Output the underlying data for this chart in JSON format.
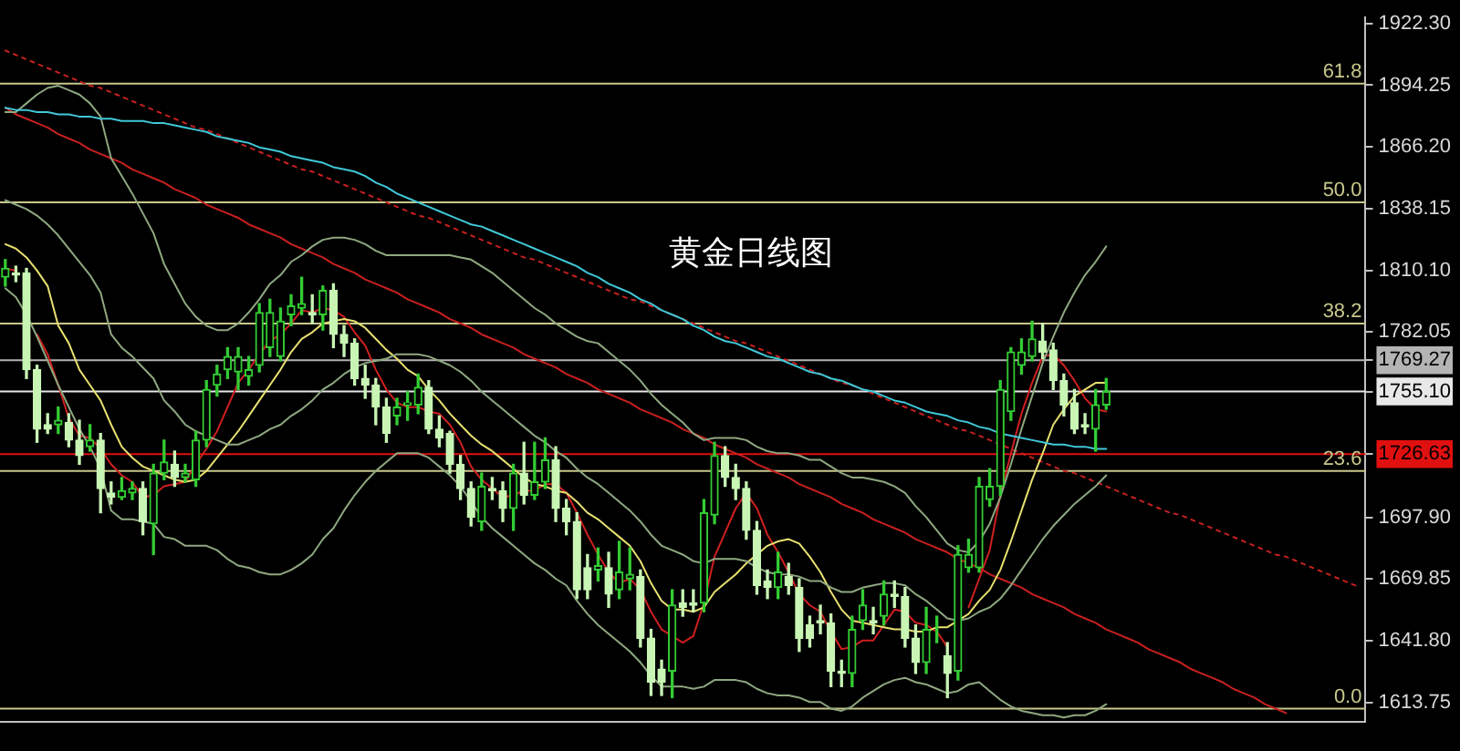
{
  "chart_data": {
    "type": "candlestick",
    "title": "黄金日线图",
    "colors": [
      "#33cc33",
      "#c8f5b4",
      "#c8f5b4",
      "#c8f5b4",
      "#c8f5b4",
      "#33cc33",
      "#c8f5b4",
      "#c8f5b4",
      "#33cc33",
      "#c8f5b4",
      "#c8f5b4",
      "#33cc33",
      "#33cc33",
      "#c8f5b4",
      "#33cc33",
      "#33cc33",
      "#c8f5b4",
      "#33cc33",
      "#33cc33",
      "#33cc33",
      "#33cc33",
      "#33cc33",
      "#33cc33",
      "#33cc33",
      "#33cc33",
      "#33cc33",
      "#33cc33",
      "#33cc33",
      "#33cc33",
      "#c8f5b4",
      "#33cc33",
      "#c8f5b4",
      "#c8f5b4",
      "#c8f5b4",
      "#c8f5b4",
      "#c8f5b4",
      "#c8f5b4",
      "#33cc33",
      "#33cc33",
      "#33cc33",
      "#c8f5b4",
      "#c8f5b4",
      "#c8f5b4",
      "#c8f5b4",
      "#c8f5b4",
      "#33cc33",
      "#c8f5b4",
      "#c8f5b4",
      "#33cc33",
      "#c8f5b4",
      "#33cc33",
      "#33cc33",
      "#c8f5b4",
      "#c8f5b4",
      "#c8f5b4",
      "#c8f5b4",
      "#33cc33",
      "#c8f5b4",
      "#33cc33",
      "#33cc33",
      "#c8f5b4",
      "#c8f5b4",
      "#c8f5b4",
      "#33cc33",
      "#c8f5b4",
      "#c8f5b4",
      "#33cc33",
      "#33cc33",
      "#c8f5b4",
      "#c8f5b4",
      "#c8f5b4",
      "#c8f5b4",
      "#c8f5b4",
      "#33cc33",
      "#c8f5b4",
      "#c8f5b4",
      "#c8f5b4",
      "#c8f5b4",
      "#c8f5b4",
      "#c8f5b4",
      "#33cc33",
      "#33cc33",
      "#c8f5b4",
      "#33cc33",
      "#c8f5b4",
      "#c8f5b4",
      "#c8f5b4",
      "#33cc33",
      "#33cc33",
      "#c8f5b4",
      "#33cc33",
      "#33cc33",
      "#33cc33",
      "#33cc33",
      "#33cc33",
      "#33cc33",
      "#33cc33",
      "#33cc33",
      "#c8f5b4",
      "#c8f5b4",
      "#c8f5b4",
      "#c8f5b4",
      "#c8f5b4",
      "#33cc33",
      "#33cc33",
      null,
      null,
      null,
      null,
      null,
      null,
      null,
      null,
      null,
      null,
      null,
      null,
      null,
      null,
      null,
      null,
      null,
      null,
      null,
      null,
      null,
      null,
      null,
      null
    ],
    "categories": [
      null,
      null,
      null,
      null,
      null,
      null,
      null,
      null,
      null,
      null,
      null,
      null,
      null,
      null,
      null,
      null,
      null,
      null,
      null,
      null,
      null,
      null,
      null,
      null,
      null,
      null,
      null,
      null,
      null,
      null,
      null,
      null,
      null,
      null,
      null,
      null,
      null,
      null,
      null,
      null,
      null,
      null,
      null,
      null,
      null,
      null,
      null,
      null,
      null,
      null,
      null,
      null,
      null,
      null,
      null,
      null,
      null,
      null,
      null,
      null,
      null,
      null,
      null,
      null,
      null,
      null,
      null,
      null,
      null,
      null,
      null,
      null,
      null,
      null,
      null,
      null,
      null,
      null,
      null,
      null,
      null,
      null,
      null,
      null,
      null,
      null,
      null,
      null,
      null,
      null,
      null,
      null,
      null,
      null,
      null,
      null,
      null,
      null,
      null,
      null,
      null,
      null,
      null,
      null,
      null,
      null,
      null,
      null,
      null,
      null,
      null,
      null,
      null,
      null,
      null,
      null,
      null,
      null,
      null,
      null,
      null,
      null,
      null,
      null,
      null,
      null,
      null,
      null,
      null
    ],
    "ohlc": [
      [
        1807,
        1815,
        1803,
        1811
      ],
      [
        1809,
        1812,
        1805,
        1808
      ],
      [
        1809,
        1811,
        1761,
        1765
      ],
      [
        1765,
        1767,
        1732,
        1738
      ],
      [
        1740,
        1745,
        1736,
        1738
      ],
      [
        1740,
        1748,
        1736,
        1742
      ],
      [
        1741,
        1745,
        1730,
        1733
      ],
      [
        1733,
        1742,
        1722,
        1726
      ],
      [
        1730,
        1740,
        1728,
        1733
      ],
      [
        1733,
        1736,
        1700,
        1711
      ],
      [
        1709,
        1714,
        1704,
        1707
      ],
      [
        1707,
        1716,
        1706,
        1710
      ],
      [
        1709,
        1714,
        1706,
        1711
      ],
      [
        1711,
        1714,
        1690,
        1696
      ],
      [
        1695,
        1722,
        1681,
        1718
      ],
      [
        1718,
        1733,
        1715,
        1723
      ],
      [
        1722,
        1728,
        1712,
        1716
      ],
      [
        1716,
        1722,
        1714,
        1718
      ],
      [
        1715,
        1737,
        1712,
        1733
      ],
      [
        1733,
        1760,
        1730,
        1756
      ],
      [
        1758,
        1767,
        1753,
        1763
      ],
      [
        1765,
        1775,
        1761,
        1771
      ],
      [
        1764,
        1775,
        1756,
        1771
      ],
      [
        1762,
        1771,
        1758,
        1765
      ],
      [
        1767,
        1795,
        1764,
        1791
      ],
      [
        1775,
        1797,
        1771,
        1791
      ],
      [
        1771,
        1793,
        1769,
        1787
      ],
      [
        1790,
        1799,
        1785,
        1794
      ],
      [
        1793,
        1807,
        1790,
        1795
      ],
      [
        1791,
        1799,
        1786,
        1790
      ],
      [
        1790,
        1803,
        1783,
        1801
      ],
      [
        1801,
        1804,
        1775,
        1781
      ],
      [
        1781,
        1785,
        1771,
        1777
      ],
      [
        1777,
        1779,
        1758,
        1761
      ],
      [
        1761,
        1767,
        1752,
        1758
      ],
      [
        1758,
        1761,
        1740,
        1748
      ],
      [
        1748,
        1752,
        1732,
        1736
      ],
      [
        1744,
        1752,
        1740,
        1748
      ],
      [
        1749,
        1755,
        1742,
        1750
      ],
      [
        1749,
        1763,
        1745,
        1757
      ],
      [
        1757,
        1760,
        1736,
        1738
      ],
      [
        1738,
        1744,
        1730,
        1734
      ],
      [
        1736,
        1737,
        1718,
        1722
      ],
      [
        1722,
        1726,
        1706,
        1711
      ],
      [
        1711,
        1714,
        1694,
        1698
      ],
      [
        1696,
        1718,
        1692,
        1712
      ],
      [
        1711,
        1716,
        1706,
        1710
      ],
      [
        1710,
        1714,
        1696,
        1702
      ],
      [
        1702,
        1722,
        1692,
        1718
      ],
      [
        1718,
        1732,
        1704,
        1708
      ],
      [
        1708,
        1732,
        1706,
        1714
      ],
      [
        1714,
        1734,
        1711,
        1724
      ],
      [
        1724,
        1730,
        1696,
        1702
      ],
      [
        1702,
        1706,
        1690,
        1696
      ],
      [
        1696,
        1700,
        1661,
        1665
      ],
      [
        1675,
        1681,
        1661,
        1665
      ],
      [
        1674,
        1684,
        1669,
        1676
      ],
      [
        1675,
        1682,
        1657,
        1663
      ],
      [
        1665,
        1687,
        1661,
        1673
      ],
      [
        1670,
        1684,
        1665,
        1672
      ],
      [
        1671,
        1674,
        1639,
        1643
      ],
      [
        1643,
        1647,
        1617,
        1623
      ],
      [
        1629,
        1633,
        1617,
        1623
      ],
      [
        1628,
        1665,
        1616,
        1658
      ],
      [
        1659,
        1665,
        1653,
        1657
      ],
      [
        1659,
        1665,
        1655,
        1658
      ],
      [
        1659,
        1706,
        1655,
        1700
      ],
      [
        1699,
        1732,
        1695,
        1726
      ],
      [
        1726,
        1730,
        1712,
        1716
      ],
      [
        1716,
        1722,
        1706,
        1711
      ],
      [
        1711,
        1714,
        1688,
        1692
      ],
      [
        1692,
        1696,
        1663,
        1667
      ],
      [
        1669,
        1674,
        1661,
        1666
      ],
      [
        1666,
        1682,
        1661,
        1673
      ],
      [
        1671,
        1677,
        1663,
        1667
      ],
      [
        1666,
        1670,
        1637,
        1643
      ],
      [
        1649,
        1653,
        1639,
        1643
      ],
      [
        1651,
        1658,
        1645,
        1650
      ],
      [
        1650,
        1654,
        1621,
        1628
      ],
      [
        1628,
        1633,
        1621,
        1627
      ],
      [
        1627,
        1653,
        1621,
        1647
      ],
      [
        1651,
        1665,
        1647,
        1658
      ],
      [
        1651,
        1657,
        1645,
        1650
      ],
      [
        1653,
        1669,
        1649,
        1663
      ],
      [
        1663,
        1669,
        1657,
        1662
      ],
      [
        1662,
        1666,
        1639,
        1643
      ],
      [
        1643,
        1649,
        1627,
        1632
      ],
      [
        1632,
        1657,
        1627,
        1647
      ],
      [
        1647,
        1653,
        1641,
        1647
      ],
      [
        1635,
        1641,
        1616,
        1627
      ],
      [
        1628,
        1685,
        1624,
        1681
      ],
      [
        1675,
        1688,
        1673,
        1681
      ],
      [
        1675,
        1716,
        1673,
        1712
      ],
      [
        1706,
        1720,
        1703,
        1712
      ],
      [
        1712,
        1760,
        1708,
        1756
      ],
      [
        1746,
        1775,
        1742,
        1773
      ],
      [
        1767,
        1779,
        1763,
        1773
      ],
      [
        1771,
        1787,
        1769,
        1779
      ],
      [
        1778,
        1786,
        1770,
        1773
      ],
      [
        1774,
        1777,
        1756,
        1760
      ],
      [
        1760,
        1763,
        1744,
        1749
      ],
      [
        1750,
        1756,
        1736,
        1738
      ],
      [
        1740,
        1745,
        1736,
        1739
      ],
      [
        1738,
        1756,
        1728,
        1749
      ],
      [
        1749,
        1761,
        1747,
        1755
      ],
      null,
      null,
      null,
      null,
      null,
      null,
      null,
      null,
      null,
      null,
      null,
      null,
      null,
      null,
      null,
      null,
      null,
      null,
      null,
      null,
      null,
      null,
      null,
      null
    ],
    "series": [
      {
        "type": "line",
        "color": "#40c8d8",
        "values": [
          1884,
          1883,
          1883,
          1882,
          1882,
          1881,
          1881,
          1880,
          1880,
          1879,
          1879,
          1878,
          1878,
          1878,
          1877,
          1877,
          1876,
          1875,
          1874,
          1873,
          1871,
          1870,
          1869,
          1868,
          1866,
          1865,
          1864,
          1862,
          1861,
          1860,
          1859,
          1857,
          1856,
          1855,
          1853,
          1850,
          1848,
          1845,
          1843,
          1841,
          1839,
          1837,
          1835,
          1833,
          1831,
          1830,
          1828,
          1826,
          1824,
          1822,
          1820,
          1818,
          1816,
          1814,
          1812,
          1809,
          1807,
          1804,
          1802,
          1800,
          1797,
          1795,
          1792,
          1790,
          1788,
          1785,
          1783,
          1780,
          1778,
          1777,
          1775,
          1773,
          1771,
          1770,
          1768,
          1766,
          1764,
          1763,
          1761,
          1760,
          1758,
          1756,
          1755,
          1753,
          1751,
          1750,
          1748,
          1746,
          1745,
          1744,
          1742,
          1741,
          1739,
          1738,
          1736,
          1735,
          1734,
          1733,
          1732,
          1731,
          1731,
          1730,
          1730,
          1729,
          1729,
          null,
          null,
          null,
          null,
          null,
          null,
          null,
          null,
          null,
          null,
          null,
          null,
          null,
          null,
          null,
          null,
          null,
          null,
          null,
          null,
          null,
          null,
          null,
          null
        ]
      },
      {
        "type": "line",
        "color": "#8fa880",
        "values": [
          1882,
          1882,
          1886,
          1890,
          1893,
          1894,
          1892,
          1890,
          1886,
          1880,
          1861,
          1853,
          1845,
          1836,
          1827,
          1813,
          1804,
          1795,
          1789,
          1785,
          1783,
          1783,
          1786,
          1791,
          1797,
          1804,
          1808,
          1814,
          1817,
          1821,
          1824,
          1825,
          1825,
          1824,
          1822,
          1819,
          1817,
          1817,
          1817,
          1817,
          1817,
          1817,
          1817,
          1816,
          1815,
          1812,
          1809,
          1805,
          1801,
          1797,
          1793,
          1790,
          1786,
          1783,
          1780,
          1778,
          1777,
          1773,
          1769,
          1765,
          1760,
          1754,
          1749,
          1745,
          1741,
          1736,
          1733,
          1734,
          1734,
          1734,
          1733,
          1730,
          1728,
          1727,
          1727,
          1726,
          1724,
          1724,
          1721,
          1718,
          1716,
          1716,
          1715,
          1714,
          1712,
          1709,
          1703,
          1698,
          1692,
          1686,
          1683,
          1682,
          1687,
          1695,
          1707,
          1722,
          1738,
          1753,
          1768,
          1780,
          1791,
          1800,
          1808,
          1814,
          1821,
          null,
          null,
          null,
          null,
          null,
          null,
          null,
          null,
          null,
          null,
          null,
          null,
          null,
          null,
          null,
          null,
          null,
          null,
          null,
          null,
          null,
          null,
          null,
          null
        ]
      },
      {
        "type": "line",
        "color": "#8fa880",
        "values": [
          1842,
          1840,
          1838,
          1835,
          1831,
          1826,
          1820,
          1814,
          1808,
          1800,
          1781,
          1775,
          1771,
          1766,
          1761,
          1751,
          1746,
          1740,
          1737,
          1735,
          1733,
          1731,
          1731,
          1733,
          1735,
          1738,
          1740,
          1744,
          1747,
          1751,
          1756,
          1759,
          1763,
          1766,
          1768,
          1769,
          1770,
          1772,
          1772,
          1772,
          1771,
          1769,
          1767,
          1764,
          1760,
          1755,
          1751,
          1747,
          1743,
          1739,
          1735,
          1732,
          1728,
          1725,
          1720,
          1716,
          1713,
          1709,
          1705,
          1701,
          1696,
          1690,
          1685,
          1683,
          1681,
          1678,
          1677,
          1679,
          1679,
          1679,
          1678,
          1675,
          1673,
          1672,
          1672,
          1671,
          1669,
          1669,
          1666,
          1664,
          1664,
          1666,
          1667,
          1668,
          1668,
          1667,
          1663,
          1660,
          1656,
          1652,
          1651,
          1652,
          1655,
          1657,
          1661,
          1667,
          1674,
          1681,
          1688,
          1694,
          1699,
          1704,
          1708,
          1712,
          1717,
          null,
          null,
          null,
          null,
          null,
          null,
          null,
          null,
          null,
          null,
          null,
          null,
          null,
          null,
          null,
          null,
          null,
          null,
          null,
          null,
          null,
          null,
          null,
          null
        ]
      },
      {
        "type": "line",
        "color": "#8fa880",
        "values": [
          1802,
          1798,
          1790,
          1780,
          1769,
          1758,
          1748,
          1738,
          1730,
          1720,
          1701,
          1697,
          1697,
          1696,
          1695,
          1689,
          1688,
          1685,
          1685,
          1685,
          1683,
          1679,
          1676,
          1675,
          1673,
          1672,
          1672,
          1674,
          1677,
          1681,
          1688,
          1693,
          1701,
          1708,
          1714,
          1719,
          1723,
          1727,
          1727,
          1727,
          1725,
          1721,
          1717,
          1712,
          1705,
          1698,
          1693,
          1689,
          1685,
          1681,
          1677,
          1674,
          1670,
          1667,
          1660,
          1654,
          1649,
          1645,
          1641,
          1637,
          1632,
          1626,
          1621,
          1621,
          1621,
          1620,
          1621,
          1624,
          1624,
          1624,
          1623,
          1620,
          1618,
          1617,
          1617,
          1616,
          1614,
          1614,
          1611,
          1610,
          1612,
          1616,
          1619,
          1622,
          1624,
          1625,
          1623,
          1622,
          1620,
          1618,
          1619,
          1622,
          1623,
          1619,
          1615,
          1612,
          1610,
          1609,
          1608,
          1608,
          1607,
          1608,
          1608,
          1610,
          1613,
          null,
          null,
          null,
          null,
          null,
          null,
          null,
          null,
          null,
          null,
          null,
          null,
          null,
          null,
          null,
          null,
          null,
          null,
          null,
          null,
          null,
          null,
          null,
          null
        ]
      },
      {
        "type": "line",
        "color": "#e8e070",
        "values": [
          1822,
          1820,
          1816,
          1810,
          1803,
          1785,
          1777,
          1765,
          1758,
          1751,
          1740,
          1730,
          1725,
          1721,
          1719,
          1717,
          1715,
          1714,
          1715,
          1719,
          1725,
          1731,
          1737,
          1744,
          1751,
          1758,
          1765,
          1773,
          1779,
          1782,
          1786,
          1787,
          1788,
          1787,
          1784,
          1779,
          1774,
          1770,
          1765,
          1762,
          1756,
          1751,
          1745,
          1740,
          1735,
          1731,
          1728,
          1724,
          1720,
          1716,
          1713,
          1712,
          1710,
          1709,
          1705,
          1700,
          1697,
          1693,
          1689,
          1685,
          1678,
          1668,
          1660,
          1656,
          1656,
          1655,
          1657,
          1664,
          1668,
          1672,
          1677,
          1681,
          1685,
          1687,
          1688,
          1686,
          1680,
          1673,
          1664,
          1656,
          1651,
          1650,
          1649,
          1648,
          1647,
          1647,
          1646,
          1646,
          1648,
          1648,
          1651,
          1654,
          1660,
          1665,
          1674,
          1687,
          1701,
          1715,
          1727,
          1740,
          1747,
          1753,
          1756,
          1759,
          1759,
          null,
          null,
          null,
          null,
          null,
          null,
          null,
          null,
          null,
          null,
          null,
          null,
          null,
          null,
          null,
          null,
          null,
          null,
          null,
          null,
          null,
          null,
          null,
          null
        ]
      },
      {
        "type": "line",
        "color": "#d02020",
        "values": [
          1811,
          1810,
          null,
          1781,
          1772,
          1758,
          1743,
          1735,
          1734,
          1729,
          1722,
          1717,
          1714,
          1707,
          1708,
          1712,
          1713,
          1714,
          1722,
          1729,
          1737,
          1748,
          1759,
          1765,
          1772,
          1778,
          1781,
          1786,
          1792,
          1791,
          1793,
          1792,
          1789,
          1782,
          1776,
          1765,
          1756,
          1750,
          1748,
          1748,
          1746,
          1745,
          1740,
          1732,
          1721,
          1715,
          1711,
          1707,
          1708,
          1710,
          1710,
          1713,
          1713,
          1709,
          1700,
          1690,
          1681,
          1673,
          1668,
          1670,
          1665,
          1655,
          1647,
          1644,
          1641,
          1644,
          1659,
          1680,
          1691,
          1702,
          1709,
          1702,
          1690,
          1682,
          1673,
          1663,
          1658,
          1655,
          1646,
          1638,
          1639,
          1642,
          1642,
          1649,
          1656,
          1655,
          1650,
          1649,
          1646,
          1639,
          null,
          1657,
          1670,
          1683,
          1708,
          1727,
          1745,
          1759,
          1771,
          1772,
          1767,
          1760,
          1752,
          1747,
          1746,
          null,
          null,
          null,
          null,
          null,
          null,
          null,
          null,
          null,
          null,
          null,
          null,
          null,
          null,
          null,
          null,
          null,
          null,
          null,
          null,
          null,
          null,
          null,
          null
        ]
      },
      {
        "type": "line",
        "color": "#c82020",
        "values": [
          1884,
          1881,
          1879,
          1877,
          1875,
          1872,
          1870,
          1868,
          1865,
          1863,
          1861,
          1859,
          1856,
          1854,
          1852,
          1850,
          1847,
          1845,
          1843,
          1840,
          1838,
          1836,
          1834,
          1831,
          1829,
          1827,
          1825,
          1822,
          1820,
          1818,
          1816,
          1813,
          1811,
          1809,
          1806,
          1804,
          1802,
          1800,
          1797,
          1795,
          1793,
          1791,
          1788,
          1786,
          1784,
          1781,
          1779,
          1777,
          1775,
          1772,
          1770,
          1768,
          1766,
          1763,
          1761,
          1759,
          1756,
          1754,
          1752,
          1750,
          1747,
          1745,
          1743,
          1741,
          1738,
          1736,
          1734,
          1731,
          1729,
          1727,
          1725,
          1722,
          1720,
          1718,
          1716,
          1713,
          1711,
          1709,
          1707,
          1704,
          1702,
          1700,
          1697,
          1695,
          1693,
          1691,
          1688,
          1686,
          1684,
          1682,
          1679,
          1677,
          1675,
          1672,
          1670,
          1668,
          1666,
          1663,
          1661,
          1659,
          1657,
          1654,
          1652,
          1650,
          1647,
          1645,
          1643,
          1641,
          1638,
          1636,
          1634,
          1632,
          1629,
          1627,
          1625,
          1623,
          1620,
          1618,
          1616,
          1613,
          1611,
          1609,
          null,
          null,
          null,
          null,
          null,
          null,
          null
        ]
      },
      {
        "type": "line",
        "color": "#c82020",
        "line_style": "dotted",
        "values": [
          1910,
          1908,
          1906,
          1904,
          1902,
          1900,
          1898,
          1896,
          1894,
          1893,
          1891,
          1889,
          1887,
          1885,
          1883,
          1881,
          1879,
          1877,
          1875,
          1874,
          1872,
          1870,
          1868,
          1866,
          1864,
          1862,
          1860,
          1858,
          1856,
          1855,
          1853,
          1851,
          1849,
          1847,
          1845,
          1843,
          1841,
          1839,
          1837,
          1835,
          1834,
          1832,
          1830,
          1828,
          1826,
          1824,
          1822,
          1820,
          1818,
          1816,
          1815,
          1813,
          1811,
          1809,
          1807,
          1805,
          1803,
          1801,
          1799,
          1797,
          1796,
          1794,
          1792,
          1790,
          1788,
          1786,
          1784,
          1782,
          1780,
          1778,
          1777,
          1775,
          1773,
          1771,
          1769,
          1767,
          1765,
          1763,
          1761,
          1759,
          1758,
          1756,
          1754,
          1752,
          1750,
          1748,
          1746,
          1744,
          1742,
          1740,
          1738,
          1737,
          1735,
          1733,
          1731,
          1729,
          1727,
          1725,
          1723,
          1721,
          1719,
          1718,
          1716,
          1714,
          1712,
          1710,
          1708,
          1706,
          1704,
          1702,
          1700,
          1699,
          1697,
          1695,
          1693,
          1691,
          1689,
          1687,
          1685,
          1683,
          1681,
          1680,
          1678,
          1676,
          1674,
          1672,
          1670,
          1668,
          1666
        ]
      }
    ],
    "ylim": [
      1605,
      1925
    ],
    "yticks": [
      1613.75,
      {
        "value": 1641.8,
        "label": "1641.80"
      },
      1669.85,
      {
        "value": 1697.9,
        "label": "1697.90"
      },
      1726.63,
      {
        "value": 1755.1,
        "label": "1755.10"
      },
      1769.27,
      1782.05,
      {
        "value": 1810.1,
        "label": "1810.10"
      },
      1838.15,
      {
        "value": 1866.2,
        "label": "1866.20"
      },
      1894.25,
      {
        "value": 1922.3,
        "label": "1922.30"
      }
    ],
    "ref_lines": [
      {
        "axis": "y",
        "value": 1895,
        "color": "#c8c88c"
      },
      {
        "axis": "y",
        "value": 1841,
        "color": "#c8c88c"
      },
      {
        "axis": "y",
        "value": 1786,
        "color": "#c8c88c"
      },
      {
        "axis": "y",
        "value": 1719,
        "color": "#c8c88c"
      },
      {
        "axis": "y",
        "value": 1611,
        "color": "#c8c88c"
      },
      {
        "axis": "y",
        "value": 1769.27,
        "color": "#b4b4b4"
      },
      {
        "axis": "y",
        "value": 1755.1,
        "color": "#e8e8e8"
      },
      {
        "axis": "y",
        "value": 1726.63,
        "color": "#e01010"
      }
    ],
    "annotations": [
      {
        "text": "61.8",
        "y": 1895
      },
      {
        "text": "50.0",
        "y": 1841
      },
      {
        "text": "38.2",
        "y": 1786
      },
      {
        "text": "23.6",
        "y": 1719
      },
      {
        "text": "0.0",
        "y": 1611
      }
    ],
    "tick_labels": "y"
  }
}
